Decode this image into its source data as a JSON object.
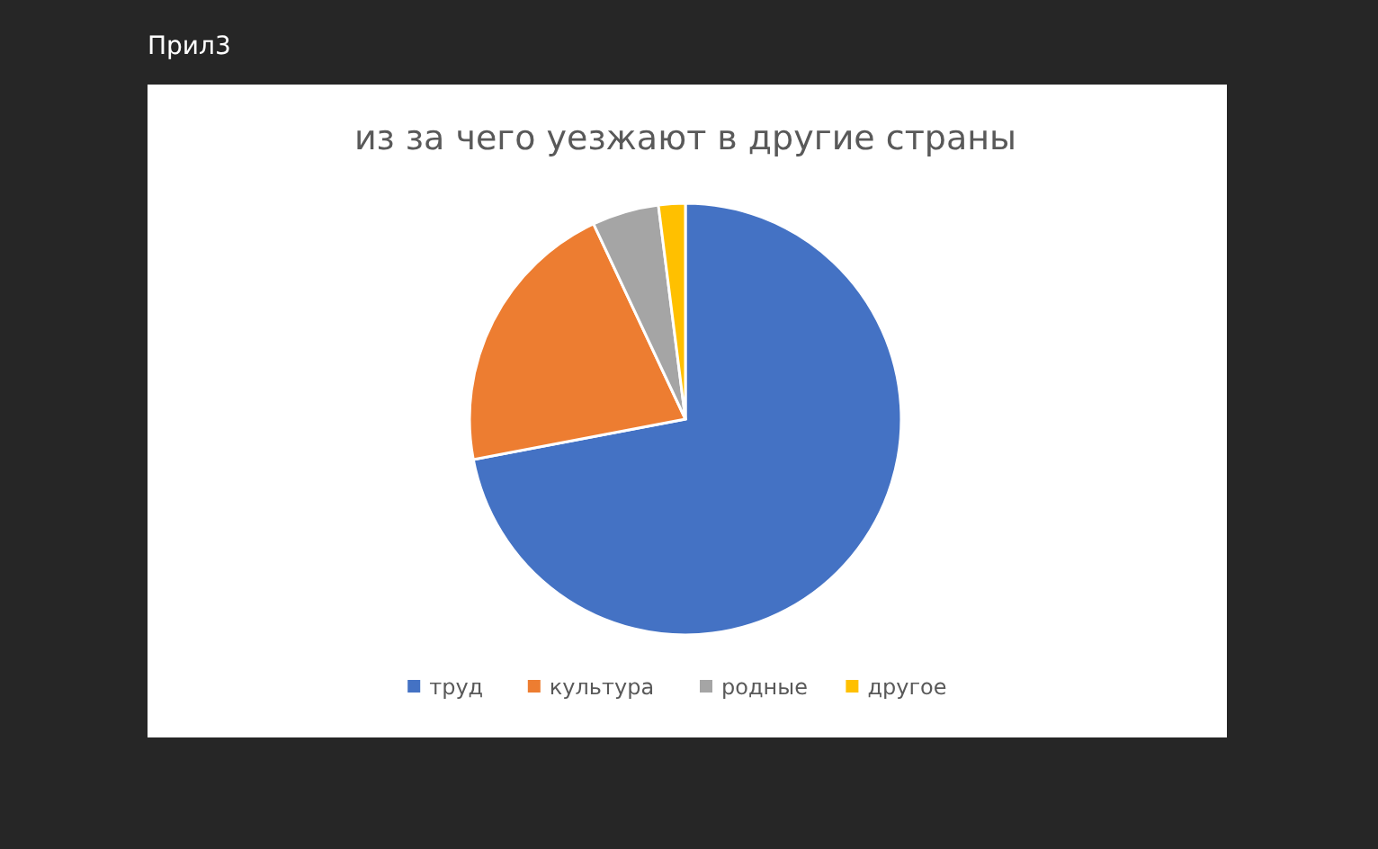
{
  "chart_data": {
    "type": "pie",
    "title": "из за чего уезжают в другие страны",
    "annotations": [
      "Прил3"
    ],
    "categories": [
      "труд",
      "культура",
      "родные",
      "другое"
    ],
    "values": [
      72,
      21,
      5,
      2
    ],
    "colors": [
      "#4472c4",
      "#ed7d31",
      "#a5a5a5",
      "#ffc000"
    ],
    "legend": "bottom"
  }
}
